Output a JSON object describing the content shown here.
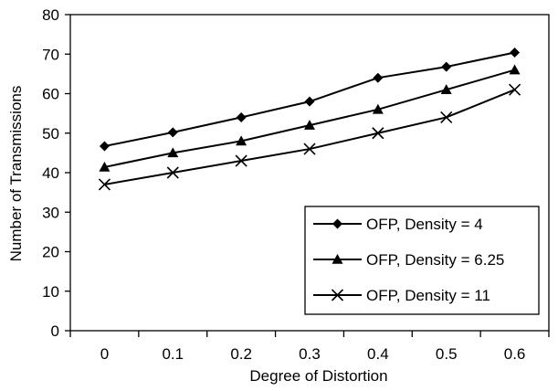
{
  "chart_data": {
    "type": "line",
    "xlabel": "Degree of Distortion",
    "ylabel": "Number of Transmissions",
    "categories": [
      "0",
      "0.1",
      "0.2",
      "0.3",
      "0.4",
      "0.5",
      "0.6"
    ],
    "ylim": [
      0,
      80
    ],
    "yticks": [
      0,
      10,
      20,
      30,
      40,
      50,
      60,
      70,
      80
    ],
    "grid": false,
    "legend_position": "bottom-right",
    "series": [
      {
        "name": "OFP, Density = 4",
        "marker": "diamond",
        "values": [
          46.7,
          50.2,
          54,
          58,
          64,
          66.8,
          70.4
        ]
      },
      {
        "name": "OFP, Density = 6.25",
        "marker": "triangle",
        "values": [
          41.4,
          45,
          48,
          52,
          56,
          61,
          66
        ]
      },
      {
        "name": "OFP, Density = 11",
        "marker": "x",
        "values": [
          37,
          40,
          43,
          46,
          50,
          54,
          61
        ]
      }
    ]
  }
}
